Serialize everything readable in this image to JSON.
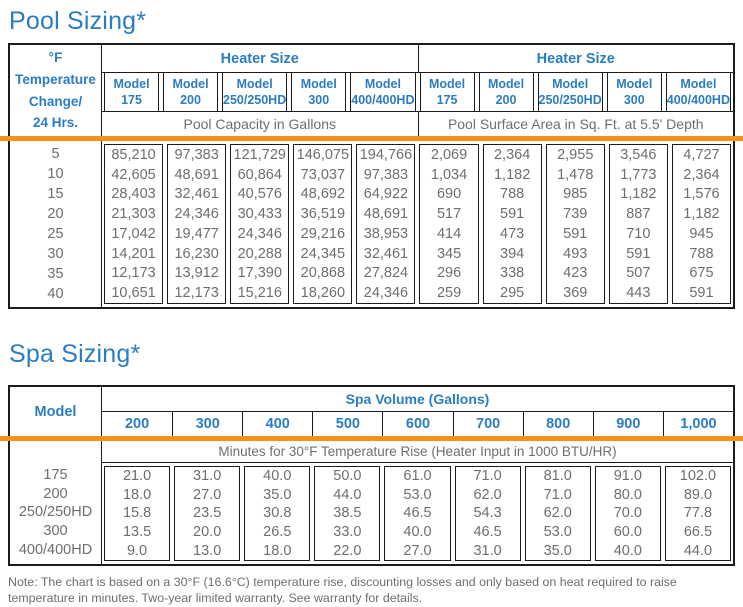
{
  "colors": {
    "blue": "#2b7dc2",
    "orange": "#F6911E",
    "text_gray": "#6d6e71",
    "border": "#1d1c1a"
  },
  "pool": {
    "title": "Pool Sizing*",
    "corner_lines": [
      "°F",
      "Temperature",
      "Change/",
      "24 Hrs."
    ],
    "group_header_left": "Heater Size",
    "group_header_right": "Heater Size",
    "model_word": "Model",
    "model_sizes": [
      "175",
      "200",
      "250/250HD",
      "300",
      "400/400HD"
    ],
    "capacity_label": "Pool Capacity in Gallons",
    "surface_label": "Pool Surface Area in Sq. Ft. at 5.5' Depth",
    "temps": [
      "5",
      "10",
      "15",
      "20",
      "25",
      "30",
      "35",
      "40"
    ],
    "capacity_rows": [
      [
        "85,210",
        "97,383",
        "121,729",
        "146,075",
        "194,766"
      ],
      [
        "42,605",
        "48,691",
        "60,864",
        "73,037",
        "97,383"
      ],
      [
        "28,403",
        "32,461",
        "40,576",
        "48,692",
        "64,922"
      ],
      [
        "21,303",
        "24,346",
        "30,433",
        "36,519",
        "48,691"
      ],
      [
        "17,042",
        "19,477",
        "24,346",
        "29,216",
        "38,953"
      ],
      [
        "14,201",
        "16,230",
        "20,288",
        "24,345",
        "32,461"
      ],
      [
        "12,173",
        "13,912",
        "17,390",
        "20,868",
        "27,824"
      ],
      [
        "10,651",
        "12,173",
        "15,216",
        "18,260",
        "24,346"
      ]
    ],
    "surface_rows": [
      [
        "2,069",
        "2,364",
        "2,955",
        "3,546",
        "4,727"
      ],
      [
        "1,034",
        "1,182",
        "1,478",
        "1,773",
        "2,364"
      ],
      [
        "690",
        "788",
        "985",
        "1,182",
        "1,576"
      ],
      [
        "517",
        "591",
        "739",
        "887",
        "1,182"
      ],
      [
        "414",
        "473",
        "591",
        "710",
        "945"
      ],
      [
        "345",
        "394",
        "493",
        "591",
        "788"
      ],
      [
        "296",
        "338",
        "423",
        "507",
        "675"
      ],
      [
        "259",
        "295",
        "369",
        "443",
        "591"
      ]
    ]
  },
  "spa": {
    "title": "Spa Sizing*",
    "model_header": "Model",
    "volume_header": "Spa Volume (Gallons)",
    "volumes": [
      "200",
      "300",
      "400",
      "500",
      "600",
      "700",
      "800",
      "900",
      "1,000"
    ],
    "band_label": "Minutes for 30°F Temperature Rise (Heater Input in 1000 BTU/HR)",
    "models": [
      "175",
      "200",
      "250/250HD",
      "300",
      "400/400HD"
    ],
    "minutes_rows": [
      [
        "21.0",
        "31.0",
        "40.0",
        "50.0",
        "61.0",
        "71.0",
        "81.0",
        "91.0",
        "102.0"
      ],
      [
        "18.0",
        "27.0",
        "35.0",
        "44.0",
        "53.0",
        "62.0",
        "71.0",
        "80.0",
        "89.0"
      ],
      [
        "15.8",
        "23.5",
        "30.8",
        "38.5",
        "46.5",
        "54.3",
        "62.0",
        "70.0",
        "77.8"
      ],
      [
        "13.5",
        "20.0",
        "26.5",
        "33.0",
        "40.0",
        "46.5",
        "53.0",
        "60.0",
        "66.5"
      ],
      [
        "9.0",
        "13.0",
        "18.0",
        "22.0",
        "27.0",
        "31.0",
        "35.0",
        "40.0",
        "44.0"
      ]
    ]
  },
  "note": {
    "text": "Note: The chart is based on a 30°F (16.6°C) temperature rise, discounting losses and only based on heat required to raise temperature in minutes. Two-year limited warranty. See warranty for details."
  }
}
